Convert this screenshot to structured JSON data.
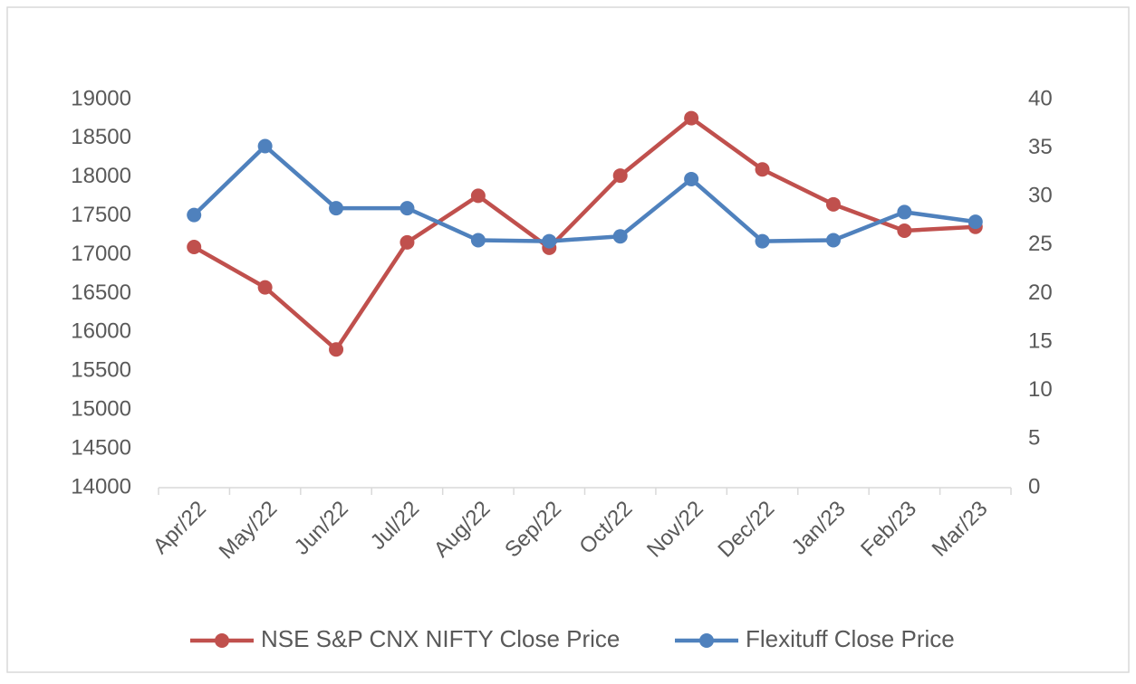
{
  "chart_data": {
    "type": "line",
    "categories": [
      "Apr/22",
      "May/22",
      "Jun/22",
      "Jul/22",
      "Aug/22",
      "Sep/22",
      "Oct/22",
      "Nov/22",
      "Dec/22",
      "Jan/23",
      "Feb/23",
      "Mar/23"
    ],
    "series": [
      {
        "name": "NSE S&P CNX NIFTY Close Price",
        "color": "#c0504d",
        "values": [
          17100,
          16580,
          15780,
          17160,
          17760,
          17090,
          18020,
          18760,
          18100,
          17650,
          17310,
          17360
        ]
      },
      {
        "name": "Flexituff Close Price",
        "color": "#4f81bd",
        "axis": "y2",
        "values": [
          28.1,
          35.2,
          28.8,
          28.8,
          25.5,
          25.4,
          25.9,
          31.8,
          25.4,
          25.5,
          28.4,
          27.4
        ]
      }
    ],
    "ylim": [
      14000,
      19000
    ],
    "yticks": [
      14000,
      14500,
      15000,
      15500,
      16000,
      16500,
      17000,
      17500,
      18000,
      18500,
      19000
    ],
    "y2lim": [
      0,
      40
    ],
    "y2ticks": [
      0,
      5,
      10,
      15,
      20,
      25,
      30,
      35,
      40
    ],
    "legend": "bottom",
    "grid": false
  }
}
